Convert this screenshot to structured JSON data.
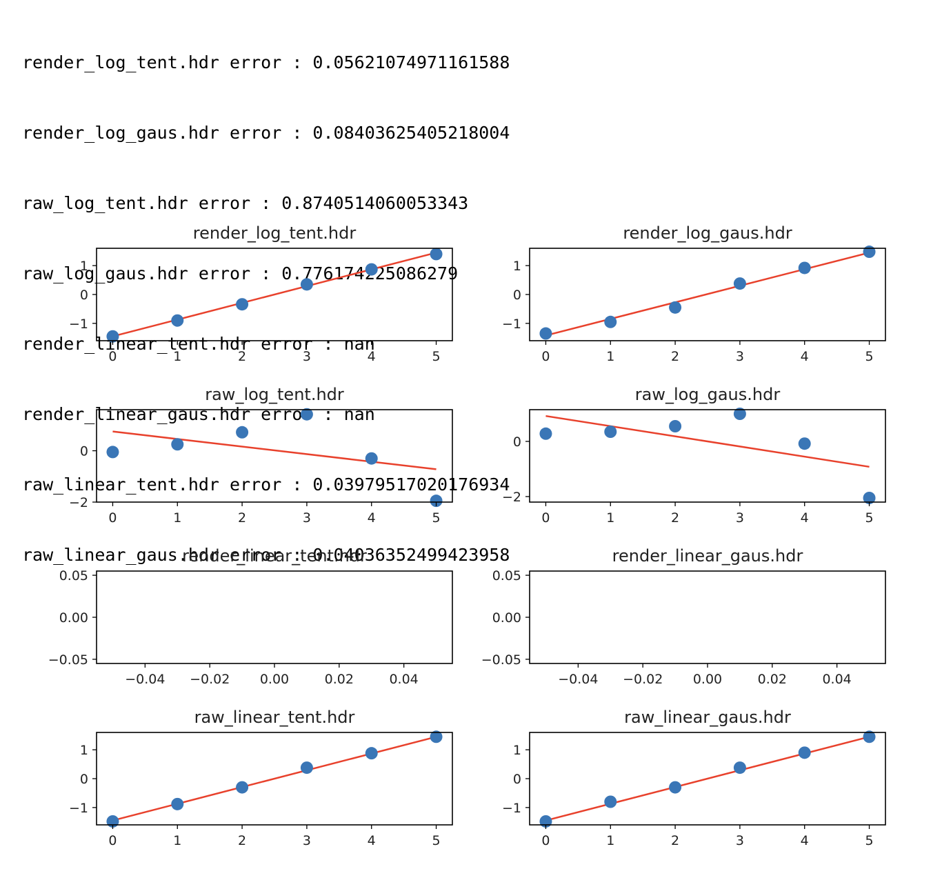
{
  "log_lines": [
    "render_log_tent.hdr error : 0.05621074971161588",
    "render_log_gaus.hdr error : 0.08403625405218004",
    "raw_log_tent.hdr error : 0.8740514060053343",
    "raw_log_gaus.hdr error : 0.776174225086279",
    "render_linear_tent.hdr error : nan",
    "render_linear_gaus.hdr error : nan",
    "raw_linear_tent.hdr error : 0.03979517020176934",
    "raw_linear_gaus.hdr error : 0.04036352499423958"
  ],
  "colors": {
    "points": "#3a76b6",
    "fit": "#e8412c",
    "axis": "#000000"
  },
  "chart_data": [
    {
      "type": "scatter",
      "title": "render_log_tent.hdr",
      "x": [
        0,
        1,
        2,
        3,
        4,
        5
      ],
      "y": [
        -1.45,
        -0.9,
        -0.34,
        0.35,
        0.87,
        1.4
      ],
      "fit": {
        "x": [
          0,
          5
        ],
        "y": [
          -1.45,
          1.45
        ]
      },
      "xlim": [
        -0.25,
        5.25
      ],
      "ylim": [
        -1.6,
        1.6
      ],
      "xticks": [
        0,
        1,
        2,
        3,
        4,
        5
      ],
      "xtick_labels": [
        "0",
        "1",
        "2",
        "3",
        "4",
        "5"
      ],
      "yticks": [
        1,
        0,
        -1
      ],
      "ytick_labels": [
        "1",
        "0",
        "−1"
      ]
    },
    {
      "type": "scatter",
      "title": "render_log_gaus.hdr",
      "x": [
        0,
        1,
        2,
        3,
        4,
        5
      ],
      "y": [
        -1.35,
        -0.95,
        -0.45,
        0.38,
        0.92,
        1.48
      ],
      "fit": {
        "x": [
          0,
          5
        ],
        "y": [
          -1.42,
          1.45
        ]
      },
      "xlim": [
        -0.25,
        5.25
      ],
      "ylim": [
        -1.6,
        1.6
      ],
      "xticks": [
        0,
        1,
        2,
        3,
        4,
        5
      ],
      "xtick_labels": [
        "0",
        "1",
        "2",
        "3",
        "4",
        "5"
      ],
      "yticks": [
        1,
        0,
        -1
      ],
      "ytick_labels": [
        "1",
        "0",
        "−1"
      ]
    },
    {
      "type": "scatter",
      "title": "raw_log_tent.hdr",
      "x": [
        0,
        1,
        2,
        3,
        4,
        5
      ],
      "y": [
        -0.05,
        0.25,
        0.72,
        1.42,
        -0.3,
        -1.95
      ],
      "fit": {
        "x": [
          0,
          5
        ],
        "y": [
          0.75,
          -0.72
        ]
      },
      "xlim": [
        -0.25,
        5.25
      ],
      "ylim": [
        -2.0,
        1.6
      ],
      "xticks": [
        0,
        1,
        2,
        3,
        4,
        5
      ],
      "xtick_labels": [
        "0",
        "1",
        "2",
        "3",
        "4",
        "5"
      ],
      "yticks": [
        0,
        -2
      ],
      "ytick_labels": [
        "0",
        "−2"
      ]
    },
    {
      "type": "scatter",
      "title": "raw_log_gaus.hdr",
      "x": [
        0,
        1,
        2,
        3,
        4,
        5
      ],
      "y": [
        0.28,
        0.35,
        0.55,
        1.0,
        -0.08,
        -2.05
      ],
      "fit": {
        "x": [
          0,
          5
        ],
        "y": [
          0.92,
          -0.92
        ]
      },
      "xlim": [
        -0.25,
        5.25
      ],
      "ylim": [
        -2.2,
        1.15
      ],
      "xticks": [
        0,
        1,
        2,
        3,
        4,
        5
      ],
      "xtick_labels": [
        "0",
        "1",
        "2",
        "3",
        "4",
        "5"
      ],
      "yticks": [
        0,
        -2
      ],
      "ytick_labels": [
        "0",
        "−2"
      ]
    },
    {
      "type": "scatter",
      "title": "render_linear_tent.hdr",
      "x": [],
      "y": [],
      "fit": null,
      "xlim": [
        -0.055,
        0.055
      ],
      "ylim": [
        -0.055,
        0.055
      ],
      "xticks": [
        -0.04,
        -0.02,
        0.0,
        0.02,
        0.04
      ],
      "xtick_labels": [
        "−0.04",
        "−0.02",
        "0.00",
        "0.02",
        "0.04"
      ],
      "yticks": [
        0.05,
        0.0,
        -0.05
      ],
      "ytick_labels": [
        "0.05",
        "0.00",
        "−0.05"
      ]
    },
    {
      "type": "scatter",
      "title": "render_linear_gaus.hdr",
      "x": [],
      "y": [],
      "fit": null,
      "xlim": [
        -0.055,
        0.055
      ],
      "ylim": [
        -0.055,
        0.055
      ],
      "xticks": [
        -0.04,
        -0.02,
        0.0,
        0.02,
        0.04
      ],
      "xtick_labels": [
        "−0.04",
        "−0.02",
        "0.00",
        "0.02",
        "0.04"
      ],
      "yticks": [
        0.05,
        0.0,
        -0.05
      ],
      "ytick_labels": [
        "0.05",
        "0.00",
        "−0.05"
      ]
    },
    {
      "type": "scatter",
      "title": "raw_linear_tent.hdr",
      "x": [
        0,
        1,
        2,
        3,
        4,
        5
      ],
      "y": [
        -1.48,
        -0.88,
        -0.3,
        0.38,
        0.88,
        1.45
      ],
      "fit": {
        "x": [
          0,
          5
        ],
        "y": [
          -1.45,
          1.45
        ]
      },
      "xlim": [
        -0.25,
        5.25
      ],
      "ylim": [
        -1.6,
        1.6
      ],
      "xticks": [
        0,
        1,
        2,
        3,
        4,
        5
      ],
      "xtick_labels": [
        "0",
        "1",
        "2",
        "3",
        "4",
        "5"
      ],
      "yticks": [
        1,
        0,
        -1
      ],
      "ytick_labels": [
        "1",
        "0",
        "−1"
      ]
    },
    {
      "type": "scatter",
      "title": "raw_linear_gaus.hdr",
      "x": [
        0,
        1,
        2,
        3,
        4,
        5
      ],
      "y": [
        -1.48,
        -0.8,
        -0.3,
        0.38,
        0.9,
        1.45
      ],
      "fit": {
        "x": [
          0,
          5
        ],
        "y": [
          -1.45,
          1.45
        ]
      },
      "xlim": [
        -0.25,
        5.25
      ],
      "ylim": [
        -1.6,
        1.6
      ],
      "xticks": [
        0,
        1,
        2,
        3,
        4,
        5
      ],
      "xtick_labels": [
        "0",
        "1",
        "2",
        "3",
        "4",
        "5"
      ],
      "yticks": [
        1,
        0,
        -1
      ],
      "ytick_labels": [
        "1",
        "0",
        "−1"
      ]
    }
  ]
}
